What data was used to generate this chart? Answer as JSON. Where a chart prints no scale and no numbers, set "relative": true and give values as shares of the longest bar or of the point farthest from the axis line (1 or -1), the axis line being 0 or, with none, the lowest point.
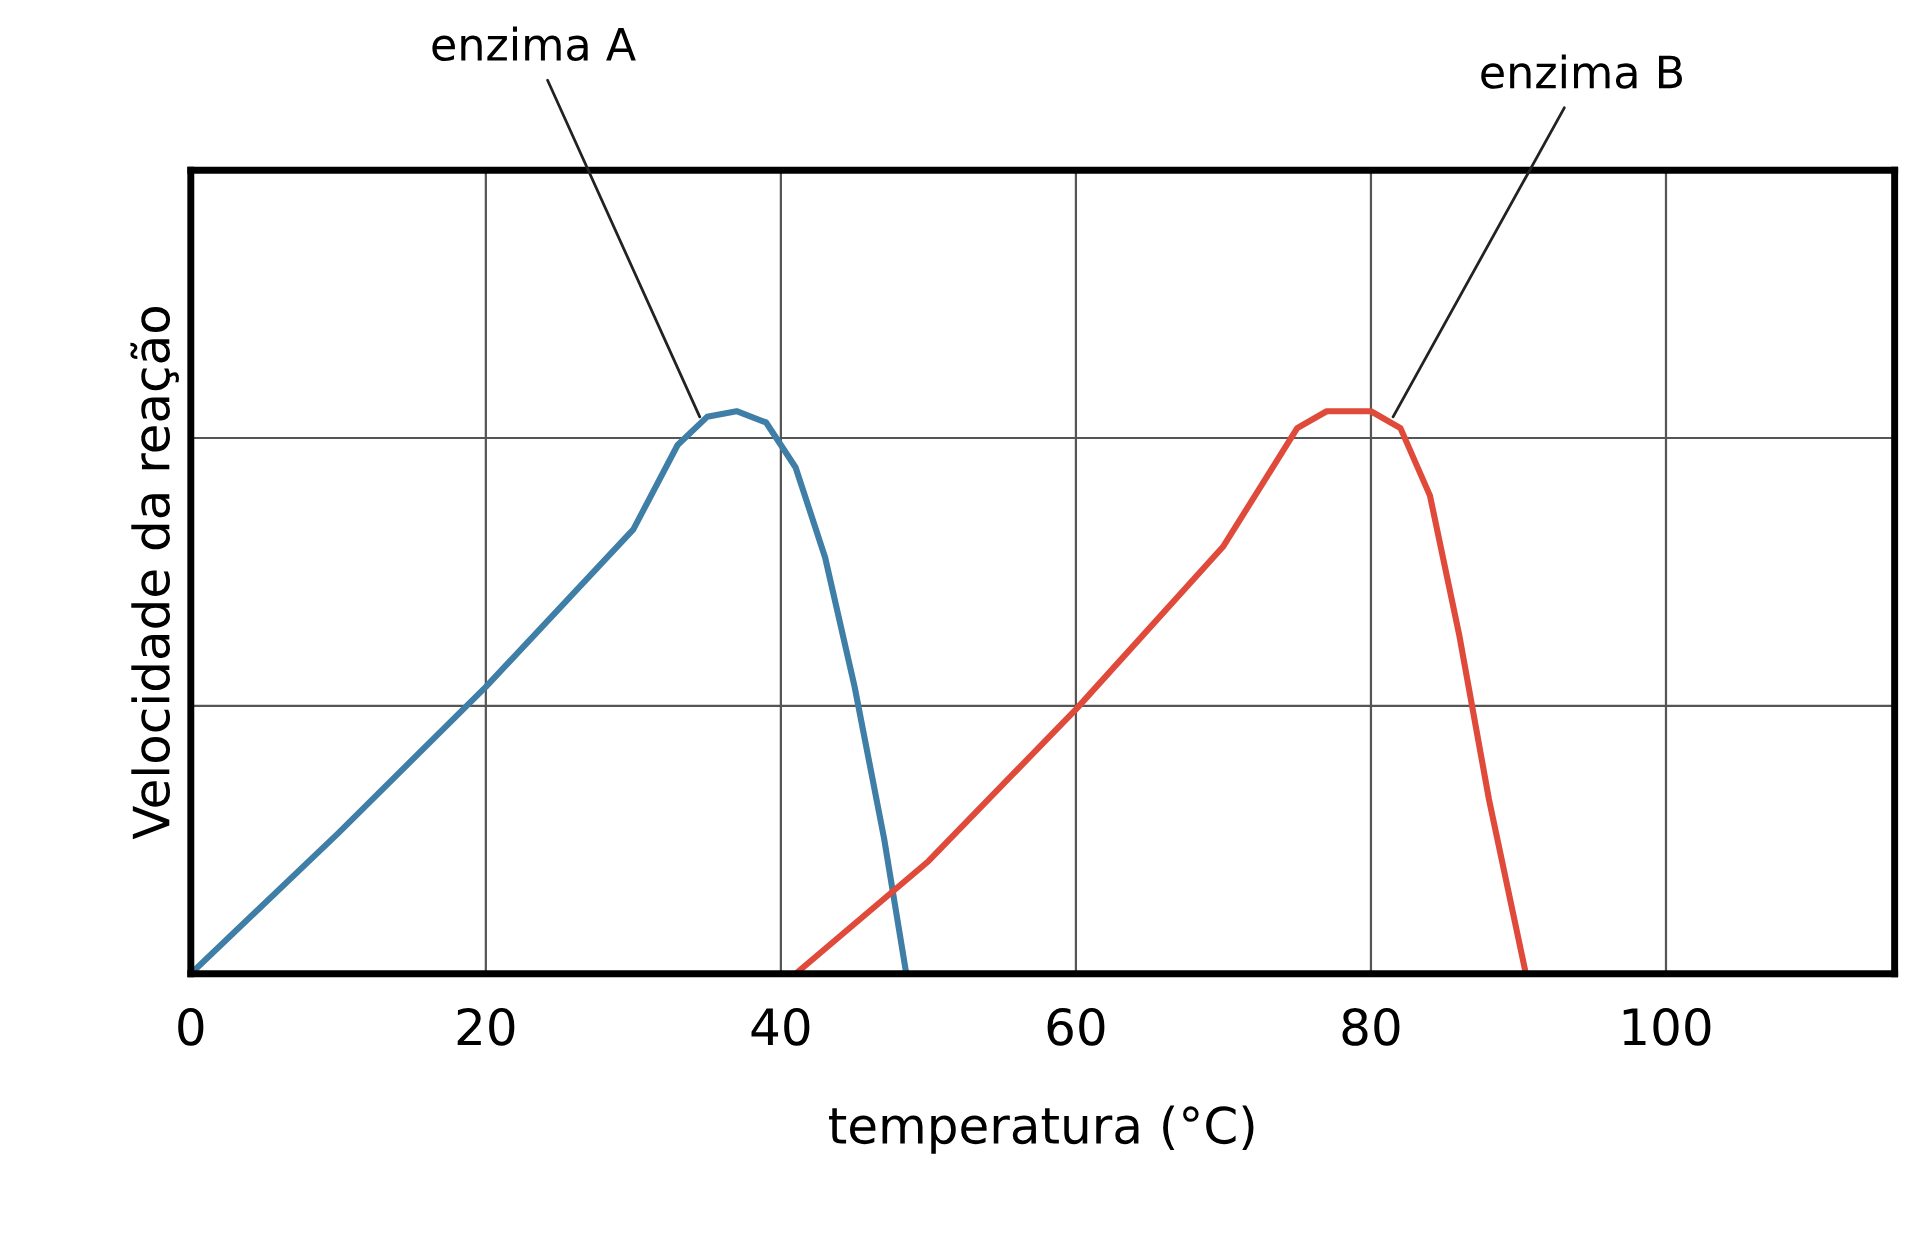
{
  "chart_data": {
    "type": "line",
    "relative": true,
    "xlabel": "temperatura (°C)",
    "ylabel": "Velocidade da reação",
    "xlim": [
      0,
      115.5
    ],
    "xticks": [
      0,
      20,
      40,
      60,
      80,
      100
    ],
    "grid": true,
    "marker": "none",
    "line_style": "solid",
    "series": [
      {
        "color": "#3f7ea6",
        "x": [
          0,
          10,
          20,
          30,
          33,
          35,
          37,
          39,
          41,
          43,
          45,
          47,
          48.5
        ],
        "values": [
          0,
          0.25,
          0.51,
          0.79,
          0.94,
          0.99,
          1,
          0.98,
          0.9,
          0.74,
          0.51,
          0.24,
          0
        ]
      },
      {
        "color": "#e04a3a",
        "x": [
          41,
          50,
          60,
          70,
          75,
          77,
          80,
          82,
          84,
          86,
          88,
          90.5
        ],
        "values": [
          0,
          0.2,
          0.47,
          0.76,
          0.97,
          1,
          1,
          0.97,
          0.85,
          0.6,
          0.31,
          0
        ]
      }
    ],
    "annotations": [
      {
        "text": "enzima A",
        "x": 34.5,
        "y": 0.99
      },
      {
        "text": "enzima B",
        "x": 81.5,
        "y": 0.99
      }
    ]
  }
}
